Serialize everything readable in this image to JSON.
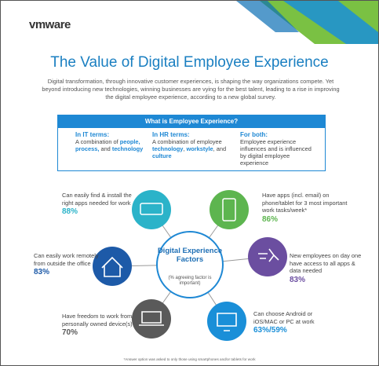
{
  "logo": "vmware",
  "title": "The Value of Digital Employee Experience",
  "intro": "Digital transformation, through innovative customer experiences, is shaping the way organizations compete. Yet beyond introducing new technologies, winning businesses are vying for the best talent, leading to a rise in improving the digital employee experience, according to a new global survey.",
  "box": {
    "heading": "What is Employee Experience?",
    "columns": [
      {
        "title": "In IT terms:",
        "parts": [
          {
            "text": "A combination of "
          },
          {
            "text": "people, process,",
            "em": true
          },
          {
            "text": " and "
          },
          {
            "text": "technology",
            "em": true
          }
        ]
      },
      {
        "title": "In HR terms:",
        "parts": [
          {
            "text": "A combination of employee "
          },
          {
            "text": "technology",
            "em": true
          },
          {
            "text": ", "
          },
          {
            "text": "workstyle",
            "em": true
          },
          {
            "text": ", and "
          },
          {
            "text": "culture",
            "em": true
          }
        ]
      },
      {
        "title": "For both:",
        "parts": [
          {
            "text": "Employee experience influences and is influenced by digital employee experience"
          }
        ]
      }
    ]
  },
  "center": {
    "title": "Digital Experience Factors",
    "subtitle": "(% agreeing factor is important)"
  },
  "factors": [
    {
      "text": "Can easily find & install the right apps needed for work",
      "value": "88%",
      "color": "#2bb3c9"
    },
    {
      "text": "Have apps (incl. email) on phone/tablet for 3 most important work tasks/week*",
      "value": "86%",
      "color": "#5db54f"
    },
    {
      "text": "Can easily work remotely from outside the office",
      "value": "83%",
      "color": "#1d5aa8"
    },
    {
      "text": "New employees on day one have access to all apps & data needed",
      "value": "83%",
      "color": "#6b4ea0"
    },
    {
      "text": "Have freedom to work from personally owned device(s)",
      "value": "70%",
      "color": "#5a5a5a"
    },
    {
      "text": "Can choose Android or iOS/MAC or PC at work",
      "value": "63%/59%",
      "color": "#1a8fd8"
    }
  ],
  "footnote": "*Answer option was asked to only those using smartphones and/or tablets for work"
}
